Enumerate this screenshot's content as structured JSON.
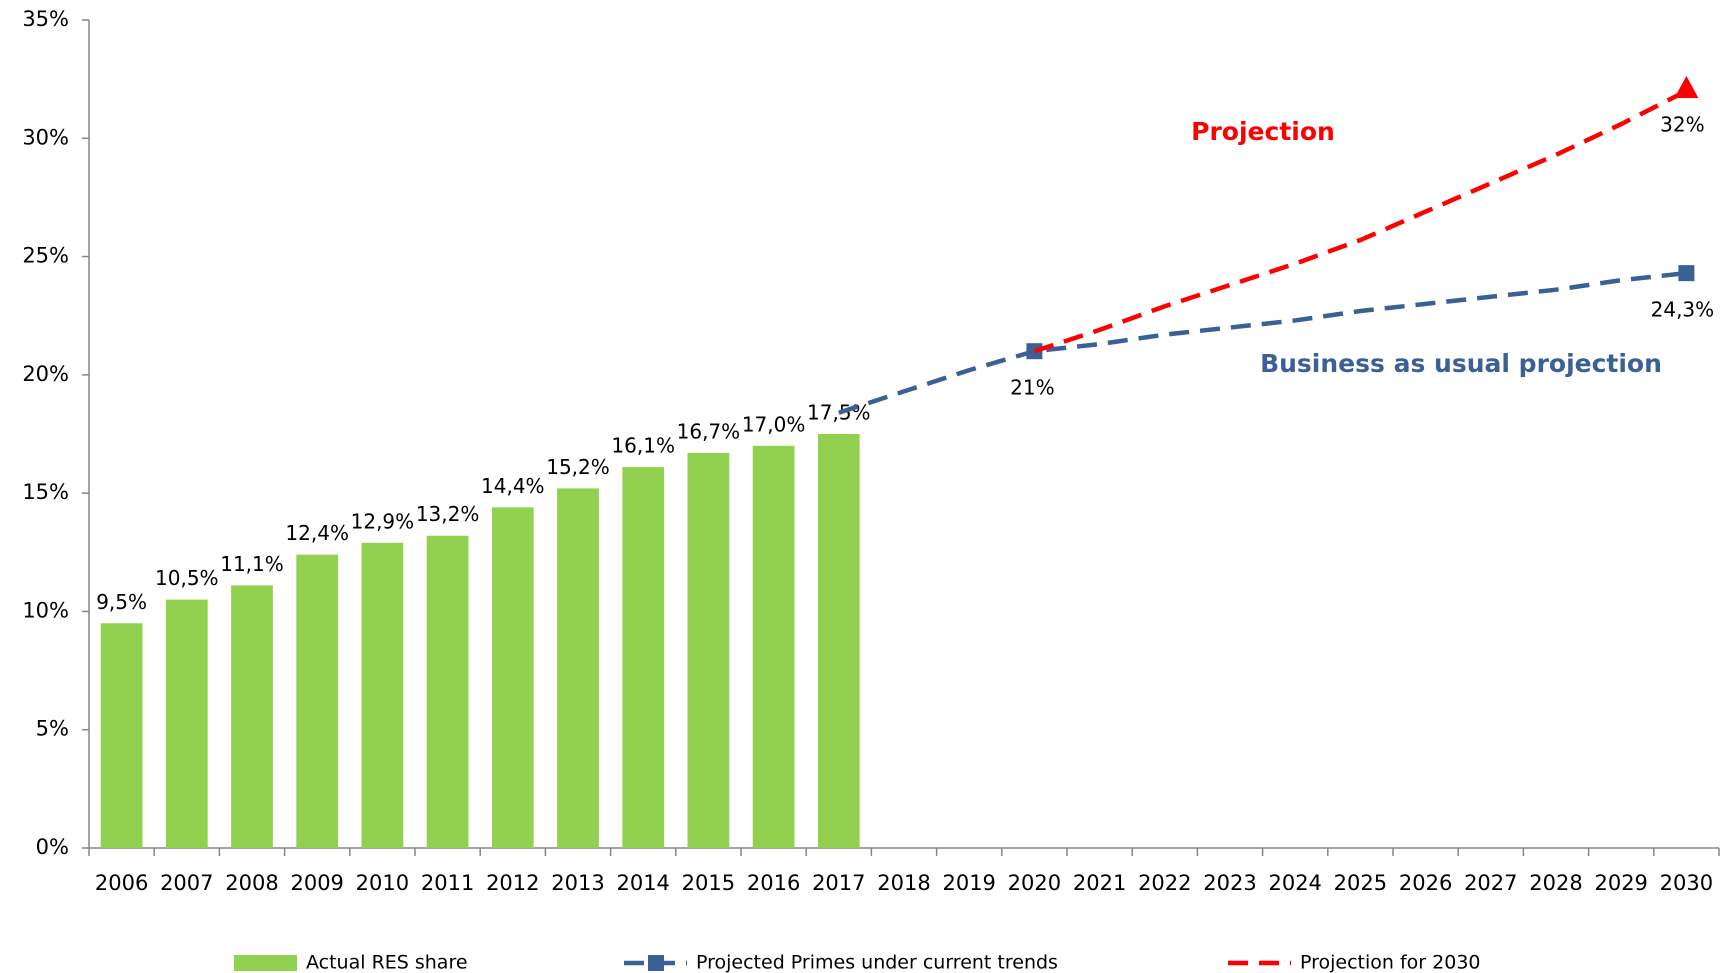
{
  "chart_data": {
    "type": "bar",
    "categories": [
      "2006",
      "2007",
      "2008",
      "2009",
      "2010",
      "2011",
      "2012",
      "2013",
      "2014",
      "2015",
      "2016",
      "2017",
      "2018",
      "2019",
      "2020",
      "2021",
      "2022",
      "2023",
      "2024",
      "2025",
      "2026",
      "2027",
      "2028",
      "2029",
      "2030"
    ],
    "series": [
      {
        "name": "Actual RES share",
        "type": "bar",
        "color": "#92d050",
        "values": [
          9.5,
          10.5,
          11.1,
          12.4,
          12.9,
          13.2,
          14.4,
          15.2,
          16.1,
          16.7,
          17.0,
          17.5,
          null,
          null,
          null,
          null,
          null,
          null,
          null,
          null,
          null,
          null,
          null,
          null,
          null
        ],
        "value_labels": [
          "9,5%",
          "10,5%",
          "11,1%",
          "12,4%",
          "12,9%",
          "13,2%",
          "14,4%",
          "15,2%",
          "16,1%",
          "16,7%",
          "17,0%",
          "17,5%",
          null,
          null,
          null,
          null,
          null,
          null,
          null,
          null,
          null,
          null,
          null,
          null,
          null
        ]
      },
      {
        "name": "Projected Primes under current trends",
        "type": "line",
        "color": "#3b6096",
        "line_style": "dashed",
        "marker": "square",
        "values": [
          null,
          null,
          null,
          null,
          null,
          null,
          null,
          null,
          null,
          null,
          null,
          18.4,
          19.3,
          20.2,
          21,
          21.3,
          21.7,
          22.0,
          22.3,
          22.7,
          23.0,
          23.3,
          23.6,
          24.0,
          24.3
        ],
        "value_labels": [
          null,
          null,
          null,
          null,
          null,
          null,
          null,
          null,
          null,
          null,
          null,
          null,
          null,
          null,
          "21%",
          null,
          null,
          null,
          null,
          null,
          null,
          null,
          null,
          null,
          "24,3%"
        ]
      },
      {
        "name": "Projection for 2030",
        "type": "line",
        "color": "#ff0000",
        "line_style": "dashed",
        "marker": "triangle",
        "values": [
          null,
          null,
          null,
          null,
          null,
          null,
          null,
          null,
          null,
          null,
          null,
          null,
          null,
          null,
          21,
          21.9,
          22.9,
          23.8,
          24.7,
          25.7,
          26.9,
          28.1,
          29.3,
          30.6,
          32
        ],
        "value_labels": [
          null,
          null,
          null,
          null,
          null,
          null,
          null,
          null,
          null,
          null,
          null,
          null,
          null,
          null,
          null,
          null,
          null,
          null,
          null,
          null,
          null,
          null,
          null,
          null,
          "32%"
        ]
      }
    ],
    "annotations": [
      {
        "text": "Projection",
        "color": "#ff0000"
      },
      {
        "text": "Business as usual projection",
        "color": "#3b6096"
      }
    ],
    "ylim": [
      0,
      35
    ],
    "yticks": [
      {
        "value": 0,
        "label": "0%"
      },
      {
        "value": 5,
        "label": "5%"
      },
      {
        "value": 10,
        "label": "10%"
      },
      {
        "value": 15,
        "label": "15%"
      },
      {
        "value": 20,
        "label": "20%"
      },
      {
        "value": 25,
        "label": "25%"
      },
      {
        "value": 30,
        "label": "30%"
      },
      {
        "value": 35,
        "label": "35%"
      }
    ],
    "grid": false,
    "legend": "bottom"
  }
}
